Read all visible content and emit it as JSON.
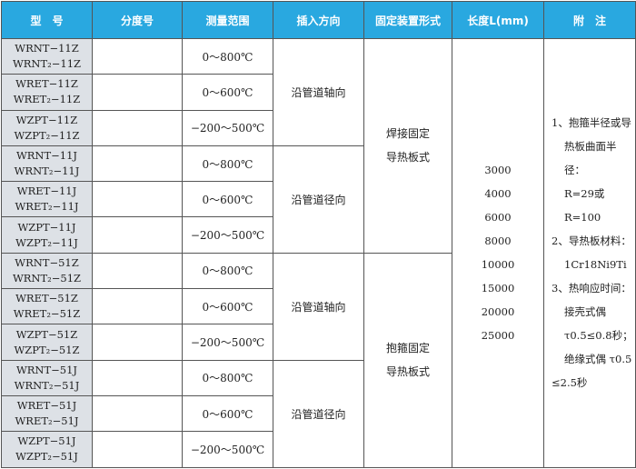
{
  "headers": [
    "型　号",
    "分度号",
    "测量范围",
    "插入方向",
    "固定装置形式",
    "长度L(mm)",
    "附　注"
  ],
  "rows": [
    {
      "m1": "WRNT−11Z",
      "m2": "WRNT₂−11Z",
      "range": "0～800℃"
    },
    {
      "m1": "WRET−11Z",
      "m2": "WRET₂−11Z",
      "range": "0～600℃"
    },
    {
      "m1": "WZPT−11Z",
      "m2": "WZPT₂−11Z",
      "range": "−200～500℃"
    },
    {
      "m1": "WRNT−11J",
      "m2": "WRNT₂−11J",
      "range": "0～800℃"
    },
    {
      "m1": "WRET−11J",
      "m2": "WRET₂−11J",
      "range": "0～600℃"
    },
    {
      "m1": "WZPT−11J",
      "m2": "WZPT₂−11J",
      "range": "−200～500℃"
    },
    {
      "m1": "WRNT−51Z",
      "m2": "WRNT₂−51Z",
      "range": "0～800℃"
    },
    {
      "m1": "WRET−51Z",
      "m2": "WRET₂−51Z",
      "range": "0～600℃"
    },
    {
      "m1": "WZPT−51Z",
      "m2": "WZPT₂−51Z",
      "range": "−200～500℃"
    },
    {
      "m1": "WRNT−51J",
      "m2": "WRNT₂−51J",
      "range": "0～800℃"
    },
    {
      "m1": "WRET−51J",
      "m2": "WRET₂−51J",
      "range": "0～600℃"
    },
    {
      "m1": "WZPT−51J",
      "m2": "WZPT₂−51J",
      "range": "−200～500℃"
    }
  ],
  "directions": [
    "沿管道轴向",
    "沿管道径向",
    "沿管道轴向",
    "沿管道径向"
  ],
  "fixing": [
    {
      "l1": "焊接固定",
      "l2": "导热板式"
    },
    {
      "l1": "抱箍固定",
      "l2": "导热板式"
    }
  ],
  "lengths": [
    "3000",
    "4000",
    "6000",
    "8000",
    "10000",
    "15000",
    "20000",
    "25000"
  ],
  "notes": [
    "1、抱箍半径或导",
    "热板曲面半径：",
    "R=29或R=100",
    "2、导热板材料：",
    "1Cr18Ni9Ti",
    "3、热响应时间：",
    "接壳式偶",
    "τ0.5≤0.8秒；",
    "绝缘式偶 τ0.5",
    "≤2.5秒"
  ],
  "colors": {
    "header": "#29a8e0",
    "model_bg": "#dde1e6"
  }
}
